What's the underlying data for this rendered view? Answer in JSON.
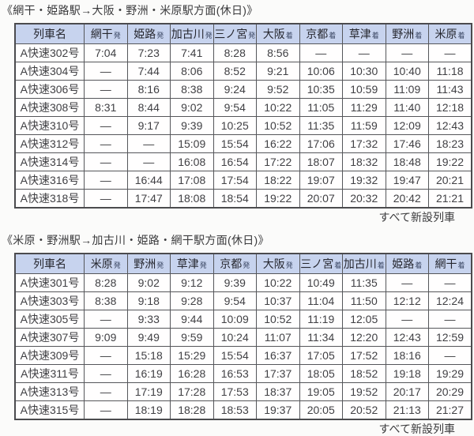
{
  "colors": {
    "header_bg": "#c7d3ee",
    "header_text": "#26272f",
    "cell_text": "#404044",
    "border": "#55565a",
    "page_bg": "#fbfbfa"
  },
  "tables": [
    {
      "title": "《網干・姫路駅→大阪・野洲・米原駅方面(休日)》",
      "note": "すべて新設列車",
      "name_header": "列車名",
      "columns": [
        {
          "station": "網干",
          "suffix": "発"
        },
        {
          "station": "姫路",
          "suffix": "発"
        },
        {
          "station": "加古川",
          "suffix": "発"
        },
        {
          "station": "三ノ宮",
          "suffix": "発"
        },
        {
          "station": "大阪",
          "suffix": "着"
        },
        {
          "station": "京都",
          "suffix": "着"
        },
        {
          "station": "草津",
          "suffix": "着"
        },
        {
          "station": "野洲",
          "suffix": "着"
        },
        {
          "station": "米原",
          "suffix": "着"
        }
      ],
      "rows": [
        {
          "train": "A快速302号",
          "times": [
            "7:04",
            "7:23",
            "7:41",
            "8:28",
            "8:56",
            "—",
            "—",
            "—",
            "—"
          ]
        },
        {
          "train": "A快速304号",
          "times": [
            "—",
            "7:44",
            "8:06",
            "8:52",
            "9:21",
            "10:06",
            "10:30",
            "10:40",
            "11:18"
          ]
        },
        {
          "train": "A快速306号",
          "times": [
            "—",
            "8:16",
            "8:38",
            "9:24",
            "9:52",
            "10:35",
            "10:59",
            "11:09",
            "11:43"
          ]
        },
        {
          "train": "A快速308号",
          "times": [
            "8:31",
            "8:44",
            "9:02",
            "9:54",
            "10:22",
            "11:05",
            "11:29",
            "11:40",
            "12:18"
          ]
        },
        {
          "train": "A快速310号",
          "times": [
            "—",
            "9:17",
            "9:39",
            "10:25",
            "10:52",
            "11:35",
            "11:59",
            "12:09",
            "12:43"
          ]
        },
        {
          "train": "A快速312号",
          "times": [
            "—",
            "—",
            "15:09",
            "15:54",
            "16:22",
            "17:06",
            "17:32",
            "17:46",
            "18:23"
          ]
        },
        {
          "train": "A快速314号",
          "times": [
            "—",
            "—",
            "16:08",
            "16:54",
            "17:22",
            "18:07",
            "18:32",
            "18:48",
            "19:22"
          ]
        },
        {
          "train": "A快速316号",
          "times": [
            "—",
            "16:44",
            "17:08",
            "17:54",
            "18:22",
            "19:07",
            "19:32",
            "19:47",
            "20:21"
          ]
        },
        {
          "train": "A快速318号",
          "times": [
            "—",
            "17:47",
            "18:08",
            "18:54",
            "19:22",
            "20:07",
            "20:32",
            "20:42",
            "21:21"
          ]
        }
      ]
    },
    {
      "title": "《米原・野洲駅→加古川・姫路・網干駅方面(休日)》",
      "note": "すべて新設列車",
      "name_header": "列車名",
      "columns": [
        {
          "station": "米原",
          "suffix": "発"
        },
        {
          "station": "野洲",
          "suffix": "発"
        },
        {
          "station": "草津",
          "suffix": "発"
        },
        {
          "station": "京都",
          "suffix": "発"
        },
        {
          "station": "大阪",
          "suffix": "発"
        },
        {
          "station": "三ノ宮",
          "suffix": "着"
        },
        {
          "station": "加古川",
          "suffix": "着"
        },
        {
          "station": "姫路",
          "suffix": "着"
        },
        {
          "station": "網干",
          "suffix": "着"
        }
      ],
      "rows": [
        {
          "train": "A快速301号",
          "times": [
            "8:28",
            "9:02",
            "9:12",
            "9:39",
            "10:22",
            "10:49",
            "11:35",
            "—",
            "—"
          ]
        },
        {
          "train": "A快速303号",
          "times": [
            "8:38",
            "9:18",
            "9:28",
            "9:54",
            "10:37",
            "11:04",
            "11:50",
            "12:12",
            "12:24"
          ]
        },
        {
          "train": "A快速305号",
          "times": [
            "—",
            "9:33",
            "9:44",
            "10:09",
            "10:52",
            "11:19",
            "12:05",
            "—",
            "—"
          ]
        },
        {
          "train": "A快速307号",
          "times": [
            "9:09",
            "9:49",
            "9:59",
            "10:24",
            "11:07",
            "11:34",
            "12:20",
            "12:43",
            "12:59"
          ]
        },
        {
          "train": "A快速309号",
          "times": [
            "—",
            "15:18",
            "15:29",
            "15:54",
            "16:37",
            "17:05",
            "17:52",
            "18:16",
            "—"
          ]
        },
        {
          "train": "A快速311号",
          "times": [
            "—",
            "16:19",
            "16:28",
            "16:53",
            "17:37",
            "18:05",
            "18:52",
            "19:18",
            "19:29"
          ]
        },
        {
          "train": "A快速313号",
          "times": [
            "—",
            "17:19",
            "17:28",
            "17:53",
            "18:37",
            "19:05",
            "19:52",
            "20:17",
            "20:29"
          ]
        },
        {
          "train": "A快速315号",
          "times": [
            "—",
            "18:19",
            "18:28",
            "18:53",
            "19:37",
            "20:05",
            "20:52",
            "21:13",
            "21:27"
          ]
        }
      ]
    }
  ]
}
